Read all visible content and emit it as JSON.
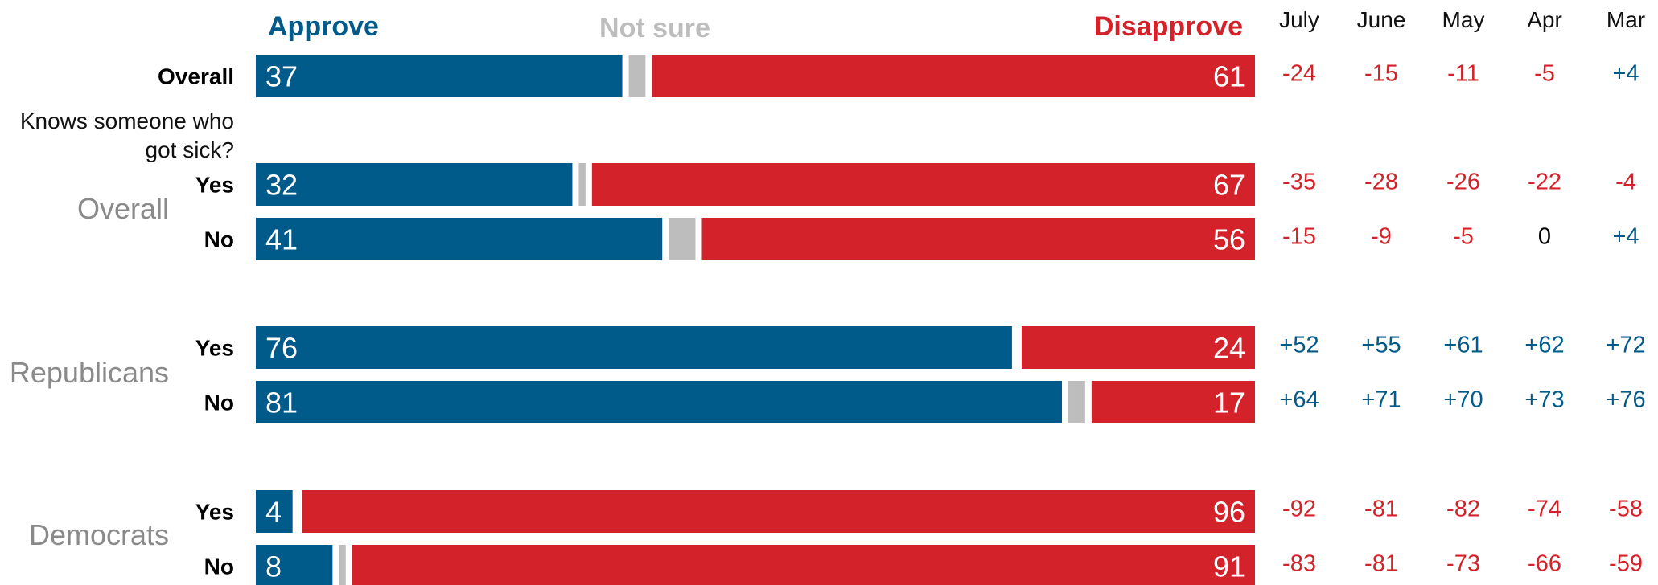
{
  "legend": {
    "approve": "Approve",
    "not_sure": "Not sure",
    "disapprove": "Disapprove"
  },
  "colors": {
    "approve": "#005b8a",
    "not_sure": "#bdbdbd",
    "disapprove": "#d4222a",
    "positive_net": "#005b8a",
    "negative_net": "#d4222a",
    "zero_net": "#000000",
    "group_label": "#8a8a8a"
  },
  "months": [
    "July",
    "June",
    "May",
    "Apr",
    "Mar"
  ],
  "question_label_lines": [
    "Knows someone who",
    "got sick?"
  ],
  "groups": [
    {
      "label": ""
    },
    {
      "label": "Overall"
    },
    {
      "label": "Republicans"
    },
    {
      "label": "Democrats"
    }
  ],
  "chart_data": {
    "type": "bar",
    "orientation": "horizontal",
    "stacked": true,
    "xlim": [
      0,
      100
    ],
    "series_names": [
      "Approve",
      "Not sure",
      "Disapprove"
    ],
    "rows": [
      {
        "group": "",
        "label": "Overall",
        "approve": 37,
        "not_sure": 2,
        "disapprove": 61,
        "net": [
          "-24",
          "-15",
          "-11",
          "-5",
          "+4"
        ]
      },
      {
        "group": "Overall",
        "label": "Yes",
        "approve": 32,
        "not_sure": 1,
        "disapprove": 67,
        "net": [
          "-35",
          "-28",
          "-26",
          "-22",
          "-4"
        ]
      },
      {
        "group": "Overall",
        "label": "No",
        "approve": 41,
        "not_sure": 3,
        "disapprove": 56,
        "net": [
          "-15",
          "-9",
          "-5",
          "0",
          "+4"
        ]
      },
      {
        "group": "Republicans",
        "label": "Yes",
        "approve": 76,
        "not_sure": 0,
        "disapprove": 24,
        "net": [
          "+52",
          "+55",
          "+61",
          "+62",
          "+72"
        ]
      },
      {
        "group": "Republicans",
        "label": "No",
        "approve": 81,
        "not_sure": 2,
        "disapprove": 17,
        "net": [
          "+64",
          "+71",
          "+70",
          "+73",
          "+76"
        ]
      },
      {
        "group": "Democrats",
        "label": "Yes",
        "approve": 4,
        "not_sure": 0,
        "disapprove": 96,
        "net": [
          "-92",
          "-81",
          "-82",
          "-74",
          "-58"
        ]
      },
      {
        "group": "Democrats",
        "label": "No",
        "approve": 8,
        "not_sure": 1,
        "disapprove": 91,
        "net": [
          "-83",
          "-81",
          "-73",
          "-66",
          "-59"
        ]
      }
    ]
  }
}
